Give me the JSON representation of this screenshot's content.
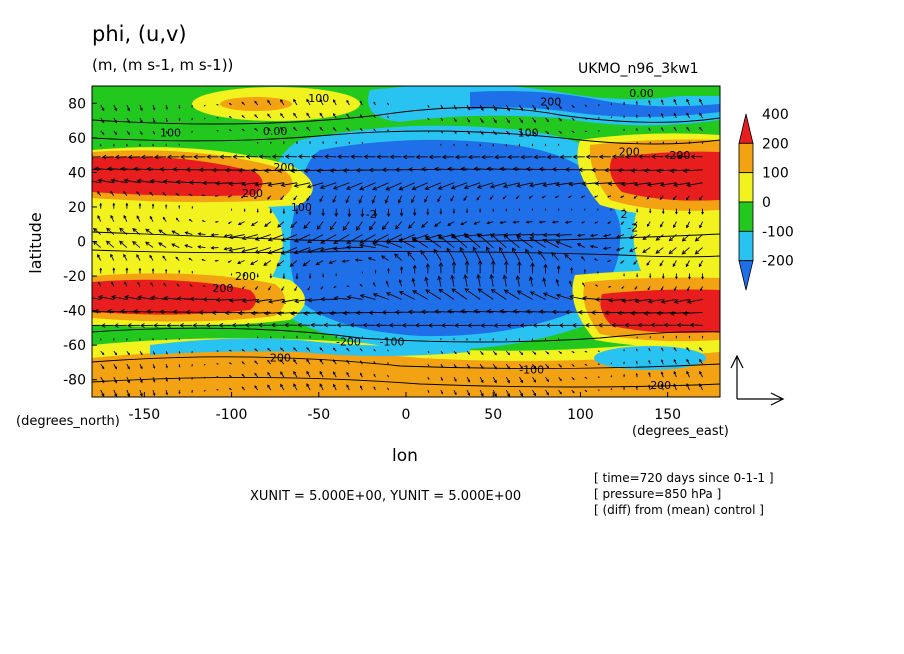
{
  "header": {
    "title": "phi, (u,v)",
    "units": "(m, (m s-1, m s-1))",
    "model": "UKMO_n96_3kw1"
  },
  "footer": {
    "unit_vectors": "XUNIT = 5.000E+00, YUNIT = 5.000E+00",
    "meta": [
      "[ time=720 days since 0-1-1 ]",
      "[ pressure=850 hPa ]",
      "[ (diff) from (mean) control ]"
    ]
  },
  "chart_data": {
    "type": "heatmap",
    "title": "phi, (u,v)",
    "xlabel": "lon",
    "ylabel": "latitude",
    "x_units": "(degrees_east)",
    "y_units": "(degrees_north)",
    "xlim": [
      -180,
      180
    ],
    "ylim": [
      -90,
      90
    ],
    "x_ticks": [
      -150,
      -100,
      -50,
      0,
      50,
      100,
      150
    ],
    "y_ticks": [
      -80,
      -60,
      -40,
      -20,
      0,
      20,
      40,
      60,
      80
    ],
    "colorbar": {
      "levels": [
        -200,
        -100,
        0,
        100,
        200,
        400
      ],
      "colors": [
        "#1f6fe8",
        "#29c3f2",
        "#22c81e",
        "#f2f21e",
        "#f2a212",
        "#e81e1e"
      ]
    },
    "contour_labels": [
      {
        "text": "100",
        "lon": -50,
        "lat": 83
      },
      {
        "text": "200",
        "lon": 83,
        "lat": 81
      },
      {
        "text": "0.00",
        "lon": 135,
        "lat": 86
      },
      {
        "text": "100",
        "lon": -135,
        "lat": 63
      },
      {
        "text": "0.00",
        "lon": -75,
        "lat": 64
      },
      {
        "text": "100",
        "lon": 70,
        "lat": 63
      },
      {
        "text": "200",
        "lon": 128,
        "lat": 52
      },
      {
        "text": "200",
        "lon": 157,
        "lat": 50
      },
      {
        "text": "200",
        "lon": -70,
        "lat": 43
      },
      {
        "text": "200",
        "lon": -88,
        "lat": 28
      },
      {
        "text": "100",
        "lon": -60,
        "lat": 20
      },
      {
        "text": "-2",
        "lon": -20,
        "lat": 16
      },
      {
        "text": "2",
        "lon": 125,
        "lat": 16
      },
      {
        "text": "-2",
        "lon": 130,
        "lat": 8
      },
      {
        "text": "200",
        "lon": -92,
        "lat": -20
      },
      {
        "text": "200",
        "lon": -105,
        "lat": -27
      },
      {
        "text": "-200",
        "lon": -33,
        "lat": -58
      },
      {
        "text": "-100",
        "lon": -8,
        "lat": -58
      },
      {
        "text": "200",
        "lon": -72,
        "lat": -67
      },
      {
        "text": "-100",
        "lon": 72,
        "lat": -74
      },
      {
        "text": "200",
        "lon": 146,
        "lat": -83
      }
    ],
    "unit_vector": {
      "u": 5.0,
      "v": 5.0
    }
  }
}
